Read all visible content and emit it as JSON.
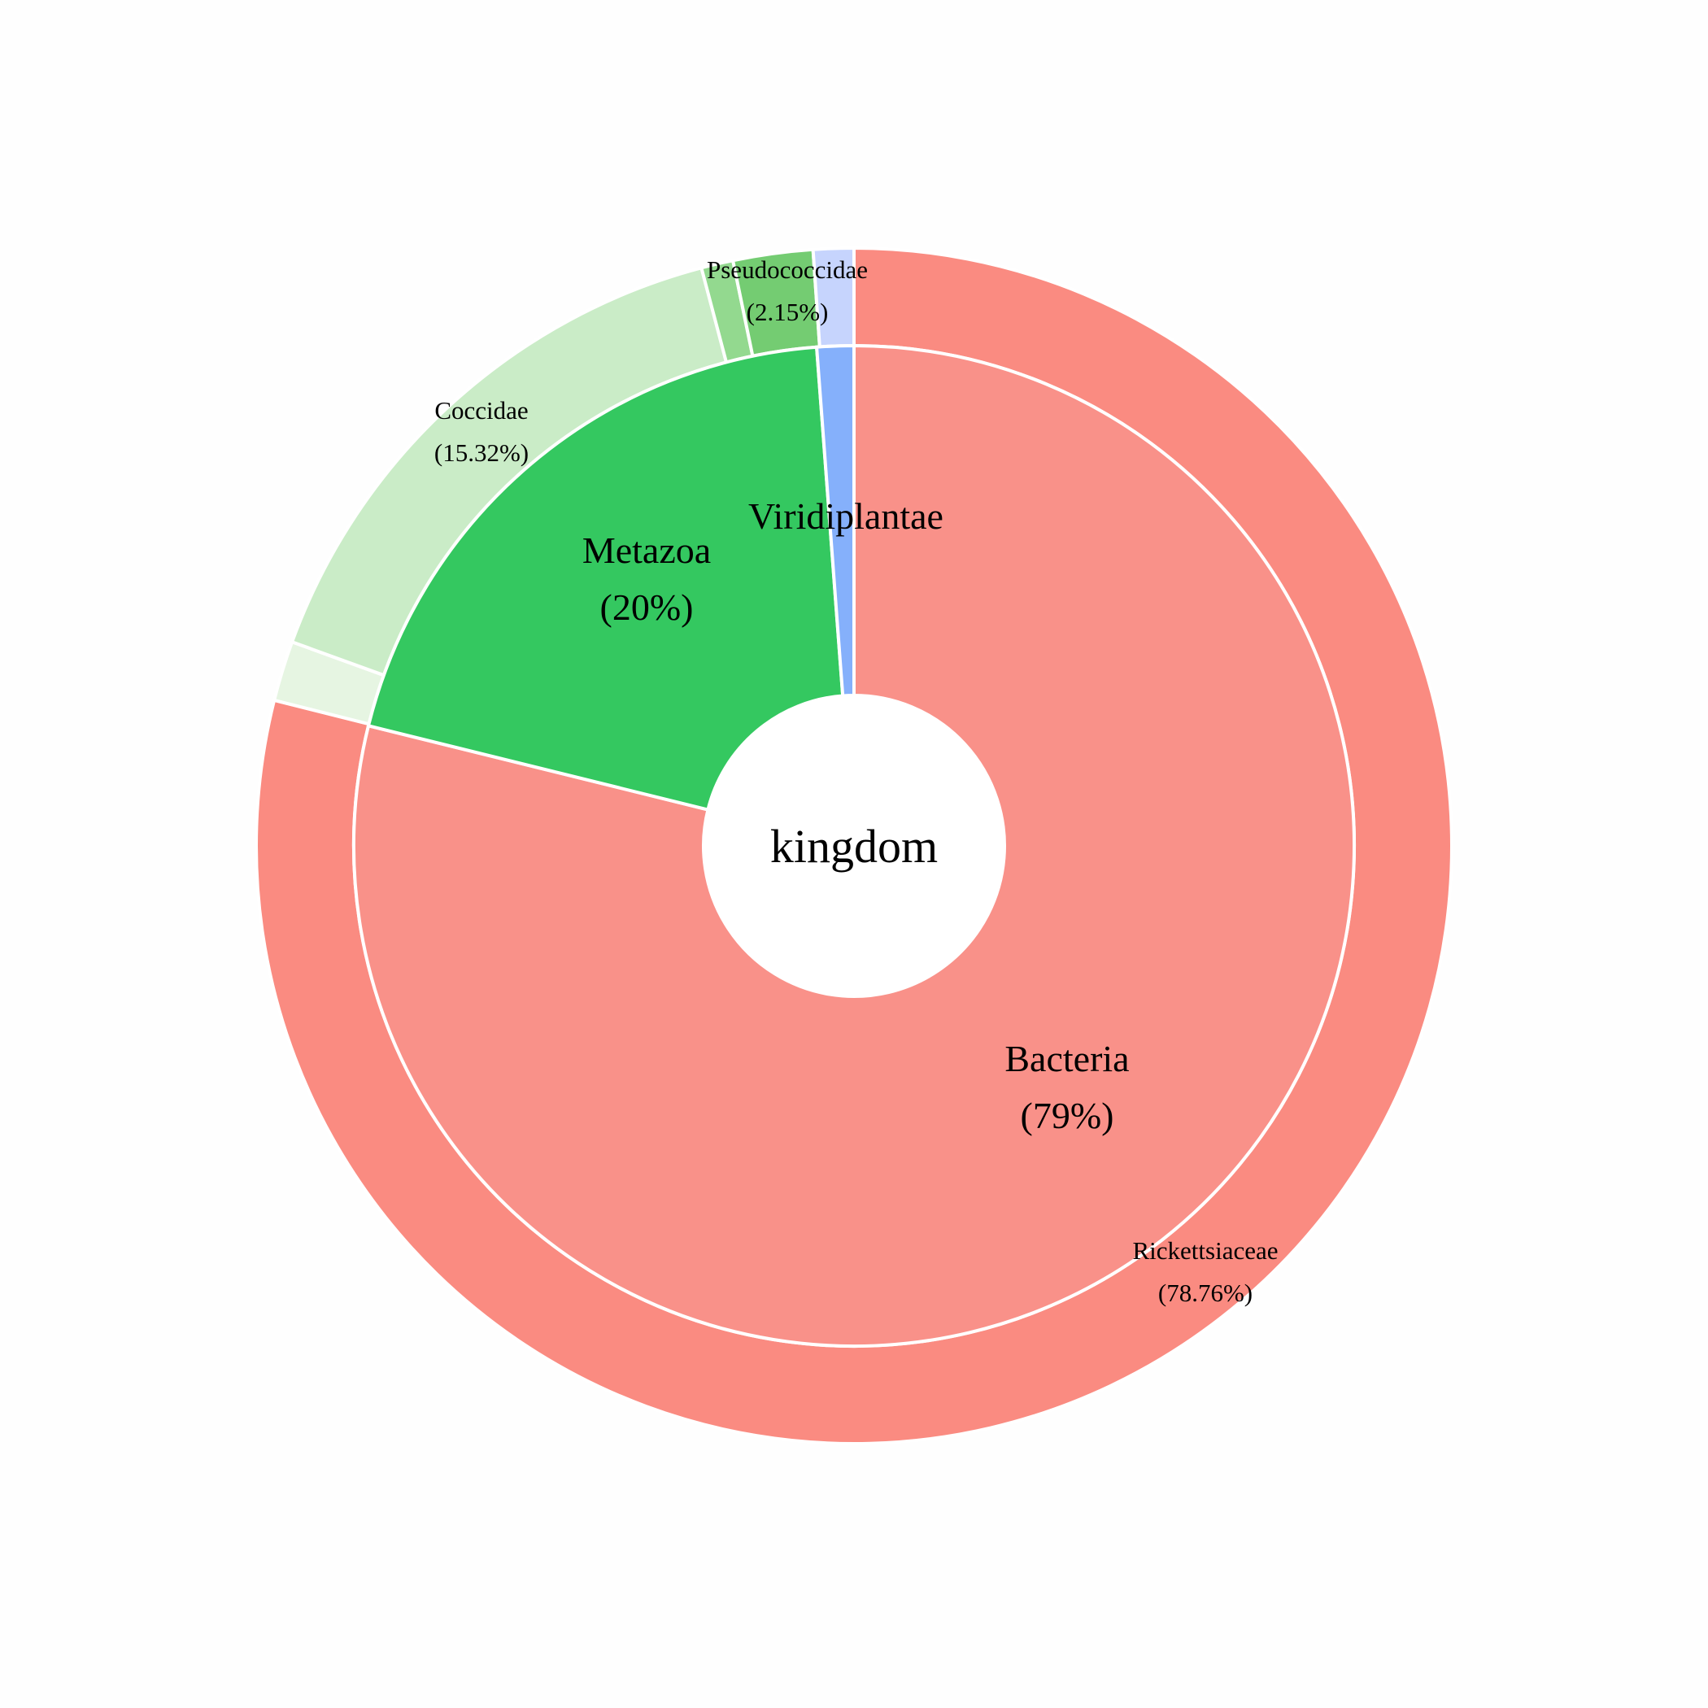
{
  "chart_data": {
    "type": "sunburst",
    "center_label": "kingdom",
    "inner_ring": [
      {
        "name": "Bacteria",
        "percent_label": "(79%)",
        "value": 78.86,
        "color": "#f99189"
      },
      {
        "name": "Metazoa",
        "percent_label": "(20%)",
        "value": 19.95,
        "color": "#34c860"
      },
      {
        "name": "Viridiplantae",
        "percent_label": "",
        "value": 1.19,
        "color": "#85b0fb"
      }
    ],
    "outer_ring": [
      {
        "name": "Rickettsiaceae",
        "percent_label": "(78.76%)",
        "value": 78.76,
        "parent": "Bacteria",
        "color": "#fa8b81"
      },
      {
        "name": "",
        "percent_label": "",
        "value": 1.62,
        "parent": "Metazoa",
        "color": "#e6f5e2"
      },
      {
        "name": "Coccidae",
        "percent_label": "(15.32%)",
        "value": 15.32,
        "parent": "Metazoa",
        "color": "#caecc7"
      },
      {
        "name": "",
        "percent_label": "",
        "value": 0.86,
        "parent": "Metazoa",
        "color": "#93d98f"
      },
      {
        "name": "Pseudococcidae",
        "percent_label": "(2.15%)",
        "value": 2.15,
        "parent": "Metazoa",
        "color": "#74cc72"
      },
      {
        "name": "",
        "percent_label": "",
        "value": 1.09,
        "parent": "Viridiplantae",
        "color": "#c6d4fd"
      }
    ]
  }
}
